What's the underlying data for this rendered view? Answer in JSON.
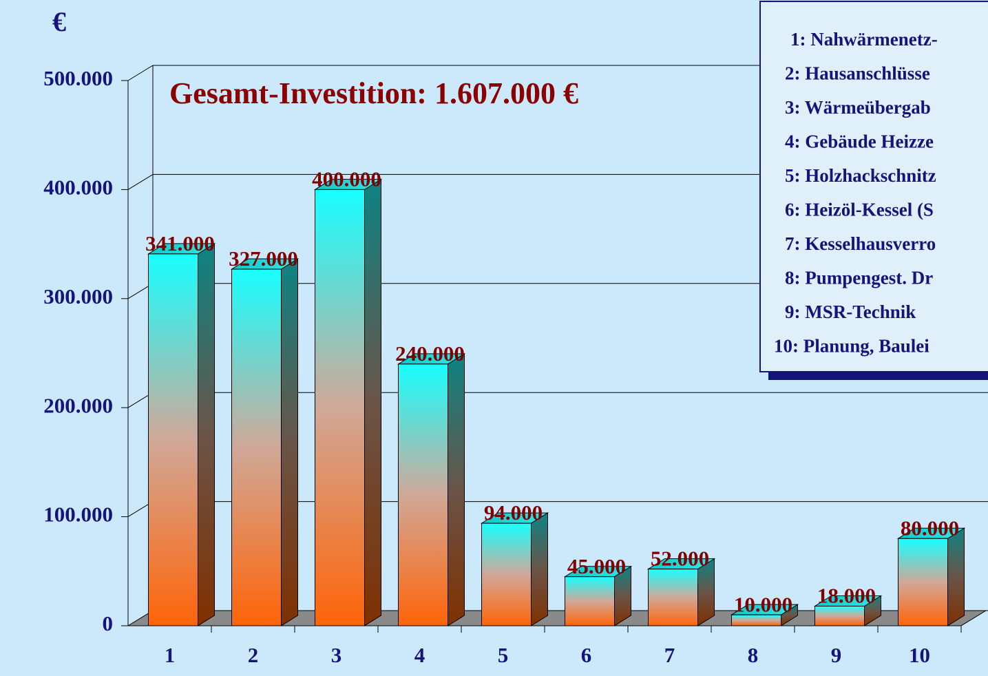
{
  "chart_data": {
    "type": "bar3d",
    "ylabel": "€",
    "annotation": "Gesamt-Investition: 1.607.000 €",
    "categories": [
      "1",
      "2",
      "3",
      "4",
      "5",
      "6",
      "7",
      "8",
      "9",
      "10"
    ],
    "values": [
      341000,
      327000,
      400000,
      240000,
      94000,
      45000,
      52000,
      10000,
      18000,
      80000
    ],
    "value_labels": [
      "341.000",
      "327.000",
      "400.000",
      "240.000",
      "94.000",
      "45.000",
      "52.000",
      "10.000",
      "18.000",
      "80.000"
    ],
    "ylim": [
      0,
      500000
    ],
    "yticks": [
      0,
      {
        "value": 100000,
        "label": "100.000"
      },
      {
        "value": 200000,
        "label": "200.000"
      },
      {
        "value": 300000,
        "label": "300.000"
      },
      {
        "value": 400000,
        "label": "400.000"
      },
      {
        "value": 500000,
        "label": "500.000"
      }
    ],
    "grid": true,
    "legend": [
      "1: Nahwärmenetz-",
      "2: Hausanschlüsse",
      "3: Wärmeübergab",
      "4: Gebäude Heizze",
      "5: Holzhackschnitz",
      "6: Heizöl-Kessel (S",
      "7: Kesselhausverro",
      "8: Pumpengest. Dr",
      "9: MSR-Technik",
      "10: Planung, Baulei"
    ]
  }
}
